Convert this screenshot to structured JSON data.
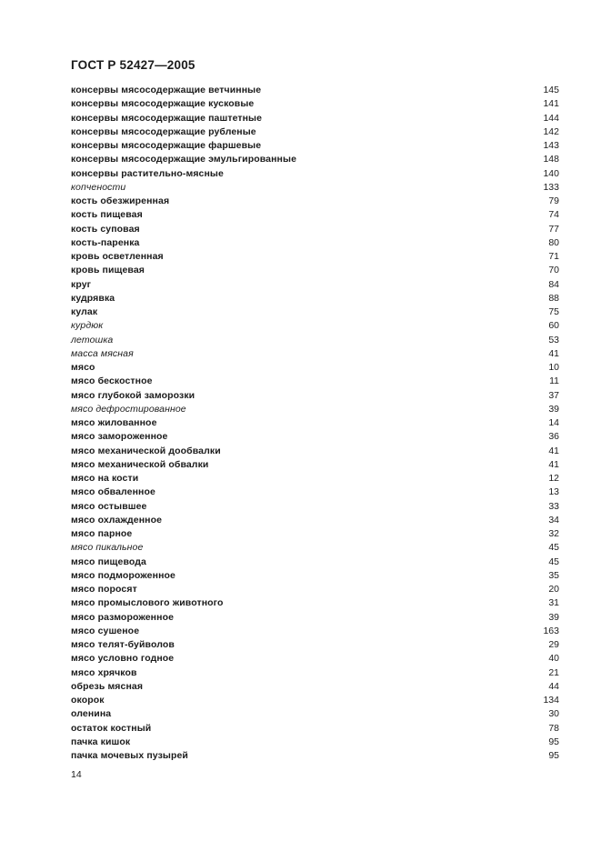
{
  "document": {
    "header": "ГОСТ Р 52427—2005",
    "footer_page_number": "14"
  },
  "index_entries": [
    {
      "term": "консервы мясосодержащие ветчинные",
      "page": "145",
      "style": "bold"
    },
    {
      "term": "консервы мясосодержащие кусковые",
      "page": "141",
      "style": "bold"
    },
    {
      "term": "консервы мясосодержащие паштетные",
      "page": "144",
      "style": "bold"
    },
    {
      "term": "консервы мясосодержащие рубленые",
      "page": "142",
      "style": "bold"
    },
    {
      "term": "консервы мясосодержащие фаршевые",
      "page": "143",
      "style": "bold"
    },
    {
      "term": "консервы мясосодержащие эмульгированные",
      "page": "148",
      "style": "bold"
    },
    {
      "term": "консервы растительно-мясные",
      "page": "140",
      "style": "bold"
    },
    {
      "term": "копчености",
      "page": "133",
      "style": "italic"
    },
    {
      "term": "кость обезжиренная",
      "page": "79",
      "style": "bold"
    },
    {
      "term": "кость пищевая",
      "page": "74",
      "style": "bold"
    },
    {
      "term": "кость суповая",
      "page": "77",
      "style": "bold"
    },
    {
      "term": "кость-паренка",
      "page": "80",
      "style": "bold"
    },
    {
      "term": "кровь осветленная",
      "page": "71",
      "style": "bold"
    },
    {
      "term": "кровь пищевая",
      "page": "70",
      "style": "bold"
    },
    {
      "term": "круг",
      "page": "84",
      "style": "bold"
    },
    {
      "term": "кудрявка",
      "page": "88",
      "style": "bold"
    },
    {
      "term": "кулак",
      "page": "75",
      "style": "bold"
    },
    {
      "term": "курдюк",
      "page": "60",
      "style": "italic"
    },
    {
      "term": "летошка",
      "page": "53",
      "style": "italic"
    },
    {
      "term": "масса мясная",
      "page": "41",
      "style": "italic"
    },
    {
      "term": "мясо",
      "page": "10",
      "style": "bold"
    },
    {
      "term": "мясо бескостное",
      "page": "11",
      "style": "bold"
    },
    {
      "term": "мясо глубокой заморозки",
      "page": "37",
      "style": "bold"
    },
    {
      "term": "мясо дефростированное",
      "page": "39",
      "style": "italic"
    },
    {
      "term": "мясо жилованное",
      "page": "14",
      "style": "bold"
    },
    {
      "term": "мясо замороженное",
      "page": "36",
      "style": "bold"
    },
    {
      "term": "мясо механической дообвалки",
      "page": "41",
      "style": "bold"
    },
    {
      "term": "мясо механической обвалки",
      "page": "41",
      "style": "bold"
    },
    {
      "term": "мясо на кости",
      "page": "12",
      "style": "bold"
    },
    {
      "term": "мясо обваленное",
      "page": "13",
      "style": "bold"
    },
    {
      "term": "мясо остывшее",
      "page": "33",
      "style": "bold"
    },
    {
      "term": "мясо охлажденное",
      "page": "34",
      "style": "bold"
    },
    {
      "term": "мясо парное",
      "page": "32",
      "style": "bold"
    },
    {
      "term": "мясо пикальное",
      "page": "45",
      "style": "italic"
    },
    {
      "term": "мясо пищевода",
      "page": "45",
      "style": "bold"
    },
    {
      "term": "мясо подмороженное",
      "page": "35",
      "style": "bold"
    },
    {
      "term": "мясо поросят",
      "page": "20",
      "style": "bold"
    },
    {
      "term": "мясо промыслового животного",
      "page": "31",
      "style": "bold"
    },
    {
      "term": "мясо размороженное",
      "page": "39",
      "style": "bold"
    },
    {
      "term": "мясо сушеное",
      "page": "163",
      "style": "bold"
    },
    {
      "term": "мясо телят-буйволов",
      "page": "29",
      "style": "bold"
    },
    {
      "term": "мясо условно годное",
      "page": "40",
      "style": "bold"
    },
    {
      "term": "мясо хрячков",
      "page": "21",
      "style": "bold"
    },
    {
      "term": "обрезь мясная",
      "page": "44",
      "style": "bold"
    },
    {
      "term": "окорок",
      "page": "134",
      "style": "bold"
    },
    {
      "term": "оленина",
      "page": "30",
      "style": "bold"
    },
    {
      "term": "остаток костный",
      "page": "78",
      "style": "bold"
    },
    {
      "term": "пачка кишок",
      "page": "95",
      "style": "bold"
    },
    {
      "term": "пачка мочевых пузырей",
      "page": "95",
      "style": "bold"
    }
  ],
  "colors": {
    "page_background": "#ffffff",
    "text": "#1b1b1b"
  }
}
